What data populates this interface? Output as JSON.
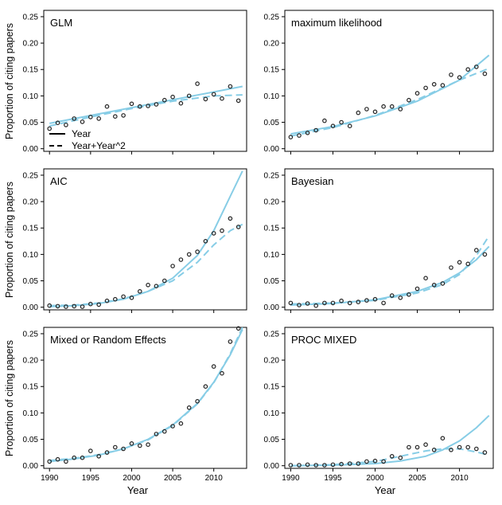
{
  "figure": {
    "xlabel": "Year",
    "ylabel": "Proportion of citing papers",
    "legend": {
      "entries": [
        {
          "label": "Year",
          "style": "solid"
        },
        {
          "label": "Year+Year^2",
          "style": "dashed"
        }
      ],
      "placement": "bottom-left of first panel"
    },
    "colors": {
      "fit": "#87cde6",
      "points": "#222222",
      "axis": "#000000"
    }
  },
  "chart_data": [
    {
      "type": "scatter",
      "title": "GLM",
      "x": [
        1990,
        1991,
        1992,
        1993,
        1994,
        1995,
        1996,
        1997,
        1998,
        1999,
        2000,
        2001,
        2002,
        2003,
        2004,
        2005,
        2006,
        2007,
        2008,
        2009,
        2010,
        2011,
        2012,
        2013
      ],
      "y": [
        0.038,
        0.049,
        0.045,
        0.057,
        0.051,
        0.06,
        0.057,
        0.08,
        0.061,
        0.063,
        0.085,
        0.08,
        0.081,
        0.084,
        0.092,
        0.098,
        0.086,
        0.1,
        0.123,
        0.094,
        0.103,
        0.095,
        0.118,
        0.091
      ],
      "series": [
        {
          "name": "Year",
          "style": "solid",
          "x": [
            1990,
            2013.5
          ],
          "y": [
            0.048,
            0.118
          ]
        },
        {
          "name": "Year+Year^2",
          "style": "dashed",
          "x": [
            1990,
            1995,
            2000,
            2005,
            2010,
            2013.5
          ],
          "y": [
            0.043,
            0.06,
            0.076,
            0.09,
            0.1,
            0.102
          ]
        }
      ],
      "xlim": [
        1989.3,
        2014
      ],
      "ylim": [
        -0.005,
        0.262
      ],
      "xticks": [
        1990,
        1995,
        2000,
        2005,
        2010
      ],
      "yticks": [
        "0.00",
        "0.05",
        "0.10",
        "0.15",
        "0.20",
        "0.25"
      ]
    },
    {
      "type": "scatter",
      "title": "maximum likelihood",
      "x": [
        1990,
        1991,
        1992,
        1993,
        1994,
        1995,
        1996,
        1997,
        1998,
        1999,
        2000,
        2001,
        2002,
        2003,
        2004,
        2005,
        2006,
        2007,
        2008,
        2009,
        2010,
        2011,
        2012,
        2013
      ],
      "y": [
        0.022,
        0.025,
        0.03,
        0.035,
        0.053,
        0.043,
        0.05,
        0.043,
        0.068,
        0.075,
        0.07,
        0.08,
        0.08,
        0.075,
        0.092,
        0.105,
        0.115,
        0.122,
        0.12,
        0.14,
        0.135,
        0.15,
        0.155,
        0.142
      ],
      "series": [
        {
          "name": "Year",
          "style": "solid",
          "x": [
            1990,
            1995,
            2000,
            2005,
            2010,
            2013.5
          ],
          "y": [
            0.028,
            0.042,
            0.062,
            0.09,
            0.13,
            0.177
          ]
        },
        {
          "name": "Year+Year^2",
          "style": "dashed",
          "x": [
            1990,
            1995,
            2000,
            2005,
            2010,
            2013.5
          ],
          "y": [
            0.024,
            0.04,
            0.063,
            0.093,
            0.13,
            0.152
          ]
        }
      ],
      "xlim": [
        1989.3,
        2014
      ],
      "ylim": [
        -0.005,
        0.262
      ],
      "xticks": [
        1990,
        1995,
        2000,
        2005,
        2010
      ],
      "yticks": [
        "0.00",
        "0.05",
        "0.10",
        "0.15",
        "0.20",
        "0.25"
      ]
    },
    {
      "type": "scatter",
      "title": "AIC",
      "x": [
        1990,
        1991,
        1992,
        1993,
        1994,
        1995,
        1996,
        1997,
        1998,
        1999,
        2000,
        2001,
        2002,
        2003,
        2004,
        2005,
        2006,
        2007,
        2008,
        2009,
        2010,
        2011,
        2012,
        2013
      ],
      "y": [
        0.003,
        0.002,
        0.001,
        0.002,
        0.001,
        0.006,
        0.005,
        0.012,
        0.015,
        0.02,
        0.018,
        0.03,
        0.042,
        0.04,
        0.05,
        0.078,
        0.09,
        0.1,
        0.105,
        0.125,
        0.14,
        0.145,
        0.168,
        0.152
      ],
      "series": [
        {
          "name": "Year",
          "style": "solid",
          "x": [
            1990,
            1993,
            1996,
            1999,
            2002,
            2005,
            2008,
            2010,
            2012,
            2013.5
          ],
          "y": [
            0.001,
            0.003,
            0.007,
            0.015,
            0.03,
            0.055,
            0.098,
            0.145,
            0.21,
            0.258
          ]
        },
        {
          "name": "Year+Year^2",
          "style": "dashed",
          "x": [
            1990,
            1993,
            1996,
            1999,
            2002,
            2005,
            2008,
            2010,
            2012,
            2013.5
          ],
          "y": [
            0.003,
            0.004,
            0.008,
            0.016,
            0.03,
            0.05,
            0.085,
            0.118,
            0.145,
            0.157
          ]
        }
      ],
      "xlim": [
        1989.3,
        2014
      ],
      "ylim": [
        -0.005,
        0.262
      ],
      "xticks": [
        1990,
        1995,
        2000,
        2005,
        2010
      ],
      "yticks": [
        "0.00",
        "0.05",
        "0.10",
        "0.15",
        "0.20",
        "0.25"
      ]
    },
    {
      "type": "scatter",
      "title": "Bayesian",
      "x": [
        1990,
        1991,
        1992,
        1993,
        1994,
        1995,
        1996,
        1997,
        1998,
        1999,
        2000,
        2001,
        2002,
        2003,
        2004,
        2005,
        2006,
        2007,
        2008,
        2009,
        2010,
        2011,
        2012,
        2013
      ],
      "y": [
        0.008,
        0.004,
        0.007,
        0.003,
        0.008,
        0.008,
        0.012,
        0.008,
        0.01,
        0.013,
        0.015,
        0.008,
        0.022,
        0.018,
        0.024,
        0.035,
        0.055,
        0.042,
        0.045,
        0.075,
        0.085,
        0.082,
        0.108,
        0.1
      ],
      "series": [
        {
          "name": "Year",
          "style": "solid",
          "x": [
            1990,
            1995,
            2000,
            2005,
            2008,
            2010,
            2012,
            2013.5
          ],
          "y": [
            0.004,
            0.007,
            0.014,
            0.03,
            0.047,
            0.065,
            0.09,
            0.115
          ]
        },
        {
          "name": "Year+Year^2",
          "style": "dashed",
          "x": [
            1990,
            1995,
            2000,
            2005,
            2008,
            2010,
            2012,
            2013.5
          ],
          "y": [
            0.006,
            0.008,
            0.013,
            0.027,
            0.043,
            0.062,
            0.098,
            0.135
          ]
        }
      ],
      "xlim": [
        1989.3,
        2014
      ],
      "ylim": [
        -0.005,
        0.262
      ],
      "xticks": [
        1990,
        1995,
        2000,
        2005,
        2010
      ],
      "yticks": [
        "0.00",
        "0.05",
        "0.10",
        "0.15",
        "0.20",
        "0.25"
      ]
    },
    {
      "type": "scatter",
      "title": "Mixed or Random Effects",
      "x": [
        1990,
        1991,
        1992,
        1993,
        1994,
        1995,
        1996,
        1997,
        1998,
        1999,
        2000,
        2001,
        2002,
        2003,
        2004,
        2005,
        2006,
        2007,
        2008,
        2009,
        2010,
        2011,
        2012,
        2013
      ],
      "y": [
        0.008,
        0.012,
        0.008,
        0.015,
        0.015,
        0.028,
        0.018,
        0.025,
        0.035,
        0.032,
        0.042,
        0.038,
        0.04,
        0.06,
        0.065,
        0.075,
        0.08,
        0.11,
        0.122,
        0.15,
        0.188,
        0.175,
        0.235,
        0.26
      ],
      "series": [
        {
          "name": "Year",
          "style": "solid",
          "x": [
            1990,
            1993,
            1996,
            1999,
            2002,
            2005,
            2008,
            2010,
            2012,
            2013.5
          ],
          "y": [
            0.008,
            0.013,
            0.02,
            0.032,
            0.05,
            0.077,
            0.118,
            0.158,
            0.21,
            0.258
          ]
        },
        {
          "name": "Year+Year^2",
          "style": "dashed",
          "x": [
            1990,
            1993,
            1996,
            1999,
            2002,
            2005,
            2008,
            2010,
            2012,
            2013.5
          ],
          "y": [
            0.01,
            0.014,
            0.021,
            0.032,
            0.049,
            0.076,
            0.117,
            0.157,
            0.212,
            0.262
          ]
        }
      ],
      "xlim": [
        1989.3,
        2014
      ],
      "ylim": [
        -0.005,
        0.262
      ],
      "xticks": [
        1990,
        1995,
        2000,
        2005,
        2010
      ],
      "yticks": [
        "0.00",
        "0.05",
        "0.10",
        "0.15",
        "0.20",
        "0.25"
      ]
    },
    {
      "type": "scatter",
      "title": "PROC MIXED",
      "x": [
        1990,
        1991,
        1992,
        1993,
        1994,
        1995,
        1996,
        1997,
        1998,
        1999,
        2000,
        2001,
        2002,
        2003,
        2004,
        2005,
        2006,
        2007,
        2008,
        2009,
        2010,
        2011,
        2012,
        2013
      ],
      "y": [
        0.001,
        0.001,
        0.002,
        0.001,
        0.001,
        0.002,
        0.003,
        0.004,
        0.004,
        0.008,
        0.009,
        0.008,
        0.018,
        0.015,
        0.035,
        0.035,
        0.04,
        0.03,
        0.052,
        0.03,
        0.035,
        0.035,
        0.032,
        0.025
      ],
      "series": [
        {
          "name": "Year",
          "style": "solid",
          "x": [
            1990,
            1995,
            2000,
            2003,
            2006,
            2008,
            2010,
            2012,
            2013.5
          ],
          "y": [
            0.0,
            0.001,
            0.004,
            0.009,
            0.018,
            0.03,
            0.047,
            0.072,
            0.095
          ]
        },
        {
          "name": "Year+Year^2",
          "style": "dashed",
          "x": [
            1990,
            1995,
            2000,
            2003,
            2006,
            2008,
            2010,
            2012,
            2013.5
          ],
          "y": [
            0.0,
            0.002,
            0.008,
            0.018,
            0.028,
            0.032,
            0.032,
            0.026,
            0.02
          ]
        }
      ],
      "xlim": [
        1989.3,
        2014
      ],
      "ylim": [
        -0.005,
        0.262
      ],
      "xticks": [
        1990,
        1995,
        2000,
        2005,
        2010
      ],
      "yticks": [
        "0.00",
        "0.05",
        "0.10",
        "0.15",
        "0.20",
        "0.25"
      ]
    }
  ]
}
